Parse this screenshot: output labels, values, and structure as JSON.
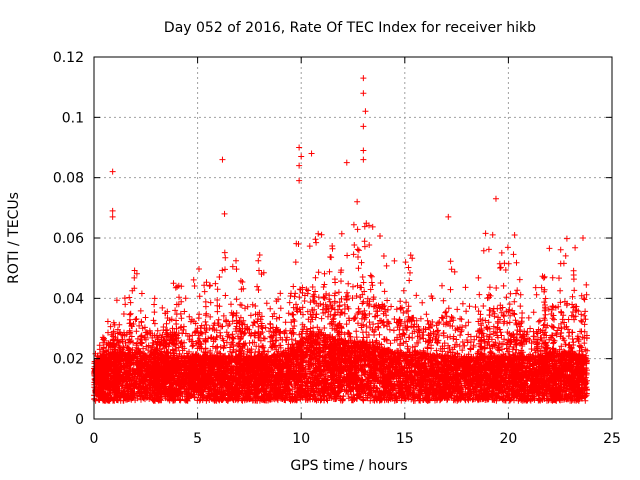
{
  "chart_data": {
    "type": "scatter",
    "title": "Day 052 of 2016, Rate Of TEC Index for receiver hikb",
    "xlabel": "GPS time / hours",
    "ylabel": "ROTI / TECUs",
    "xlim": [
      0,
      25
    ],
    "ylim": [
      0,
      0.12
    ],
    "x_ticks": [
      0,
      5,
      10,
      15,
      20,
      25
    ],
    "x_tick_labels": [
      "0",
      "5",
      "10",
      "15",
      "20",
      "25"
    ],
    "y_ticks": [
      0,
      0.02,
      0.04,
      0.06,
      0.08,
      0.1,
      0.12
    ],
    "y_tick_labels": [
      "0",
      "0.02",
      "0.04",
      "0.06",
      "0.08",
      "0.1",
      "0.12"
    ],
    "grid": true,
    "marker": "+",
    "series_color": "#ff0000",
    "x_data_range": [
      0,
      23.8
    ],
    "notable_points": [
      {
        "x": 0.9,
        "y": 0.082
      },
      {
        "x": 0.9,
        "y": 0.069
      },
      {
        "x": 0.9,
        "y": 0.067
      },
      {
        "x": 6.2,
        "y": 0.086
      },
      {
        "x": 6.3,
        "y": 0.068
      },
      {
        "x": 9.9,
        "y": 0.09
      },
      {
        "x": 10.0,
        "y": 0.087
      },
      {
        "x": 9.9,
        "y": 0.084
      },
      {
        "x": 9.9,
        "y": 0.079
      },
      {
        "x": 10.5,
        "y": 0.088
      },
      {
        "x": 12.2,
        "y": 0.085
      },
      {
        "x": 13.0,
        "y": 0.113
      },
      {
        "x": 13.0,
        "y": 0.108
      },
      {
        "x": 13.1,
        "y": 0.102
      },
      {
        "x": 13.0,
        "y": 0.097
      },
      {
        "x": 13.0,
        "y": 0.089
      },
      {
        "x": 13.0,
        "y": 0.086
      },
      {
        "x": 12.7,
        "y": 0.072
      },
      {
        "x": 17.1,
        "y": 0.067
      },
      {
        "x": 19.4,
        "y": 0.073
      },
      {
        "x": 20.3,
        "y": 0.061
      },
      {
        "x": 23.6,
        "y": 0.06
      }
    ],
    "activity_envelope": {
      "hours": [
        0,
        0.5,
        1,
        1.5,
        2,
        2.5,
        3,
        3.5,
        4,
        4.5,
        5,
        5.5,
        6,
        6.5,
        7,
        7.5,
        8,
        8.5,
        9,
        9.5,
        10,
        10.5,
        11,
        11.5,
        12,
        12.5,
        13,
        13.5,
        14,
        14.5,
        15,
        15.5,
        16,
        16.5,
        17,
        17.5,
        18,
        18.5,
        19,
        19.5,
        20,
        20.5,
        21,
        21.5,
        22,
        22.5,
        23,
        23.5,
        23.8
      ],
      "baseline": [
        0.012,
        0.012,
        0.013,
        0.013,
        0.013,
        0.013,
        0.013,
        0.012,
        0.012,
        0.012,
        0.012,
        0.012,
        0.012,
        0.012,
        0.012,
        0.012,
        0.012,
        0.012,
        0.013,
        0.014,
        0.016,
        0.018,
        0.018,
        0.017,
        0.016,
        0.016,
        0.016,
        0.015,
        0.014,
        0.013,
        0.013,
        0.013,
        0.013,
        0.012,
        0.012,
        0.012,
        0.012,
        0.012,
        0.012,
        0.012,
        0.012,
        0.012,
        0.012,
        0.012,
        0.013,
        0.013,
        0.013,
        0.012,
        0.012
      ],
      "upper": [
        0.022,
        0.03,
        0.045,
        0.04,
        0.052,
        0.045,
        0.04,
        0.042,
        0.05,
        0.045,
        0.052,
        0.045,
        0.05,
        0.06,
        0.05,
        0.045,
        0.055,
        0.048,
        0.045,
        0.05,
        0.07,
        0.065,
        0.065,
        0.06,
        0.065,
        0.07,
        0.07,
        0.065,
        0.062,
        0.055,
        0.063,
        0.05,
        0.048,
        0.05,
        0.055,
        0.05,
        0.052,
        0.05,
        0.065,
        0.058,
        0.06,
        0.05,
        0.045,
        0.05,
        0.058,
        0.06,
        0.06,
        0.055,
        0.045
      ]
    }
  }
}
